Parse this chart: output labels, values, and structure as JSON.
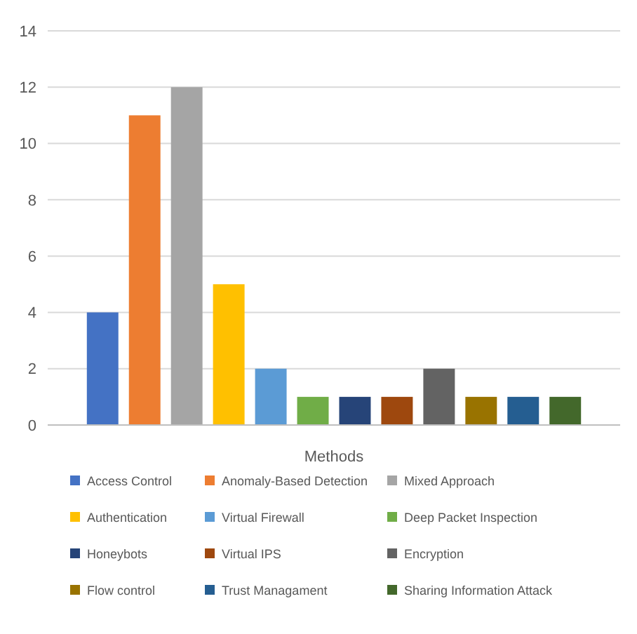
{
  "chart_data": {
    "type": "bar",
    "xlabel": "Methods",
    "categories": [
      null
    ],
    "ylim": [
      0,
      14
    ],
    "yticks": [
      0,
      2,
      4,
      6,
      8,
      10,
      12,
      14
    ],
    "grid": "y",
    "legend": "bottom",
    "series": [
      {
        "name": "Access Control",
        "color": "#4472c4",
        "values": [
          4
        ]
      },
      {
        "name": "Anomaly-Based Detection",
        "color": "#ed7d31",
        "values": [
          11
        ]
      },
      {
        "name": "Mixed Approach",
        "color": "#a5a5a5",
        "values": [
          12
        ]
      },
      {
        "name": "Authentication",
        "color": "#ffc000",
        "values": [
          5
        ]
      },
      {
        "name": "Virtual Firewall",
        "color": "#5b9bd5",
        "values": [
          2
        ]
      },
      {
        "name": "Deep Packet Inspection",
        "color": "#70ad47",
        "values": [
          1
        ]
      },
      {
        "name": "Honeybots",
        "color": "#264478",
        "values": [
          1
        ]
      },
      {
        "name": "Virtual IPS",
        "color": "#9e480e",
        "values": [
          1
        ]
      },
      {
        "name": "Encryption",
        "color": "#636363",
        "values": [
          2
        ]
      },
      {
        "name": "Flow control",
        "color": "#997300",
        "values": [
          1
        ]
      },
      {
        "name": "Trust Managament",
        "color": "#255e91",
        "values": [
          1
        ]
      },
      {
        "name": "Sharing Information Attack",
        "color": "#43682b",
        "values": [
          1
        ]
      }
    ]
  }
}
